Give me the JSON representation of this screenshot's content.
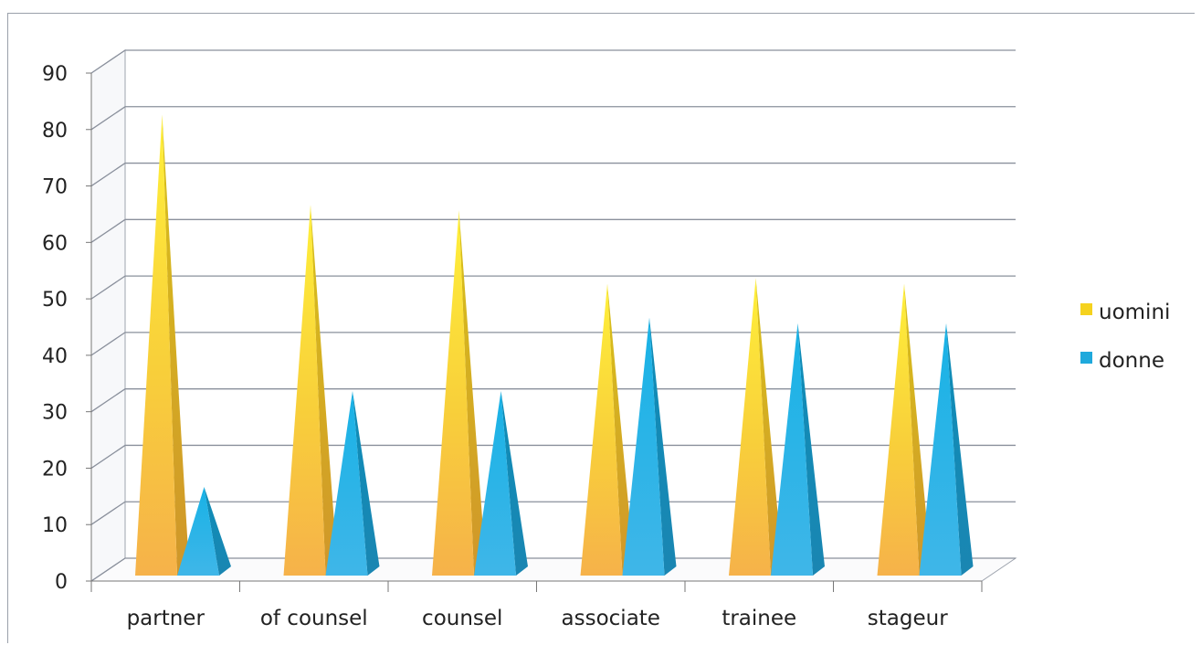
{
  "chart_data": {
    "type": "bar",
    "style": "3d-pyramid",
    "categories": [
      "partner",
      "of counsel",
      "counsel",
      "associate",
      "trainee",
      "stageur"
    ],
    "series": [
      {
        "name": "uomini",
        "values": [
          83,
          67,
          66,
          53,
          54,
          53
        ],
        "color": "#f5d21e"
      },
      {
        "name": "donne",
        "values": [
          17,
          34,
          34,
          47,
          46,
          46
        ],
        "color": "#1fa9dc"
      }
    ],
    "title": "",
    "xlabel": "",
    "ylabel": "",
    "ylim": [
      0,
      90
    ],
    "yticks": [
      0,
      10,
      20,
      30,
      40,
      50,
      60,
      70,
      80,
      90
    ],
    "grid": true,
    "legend_position": "right"
  }
}
